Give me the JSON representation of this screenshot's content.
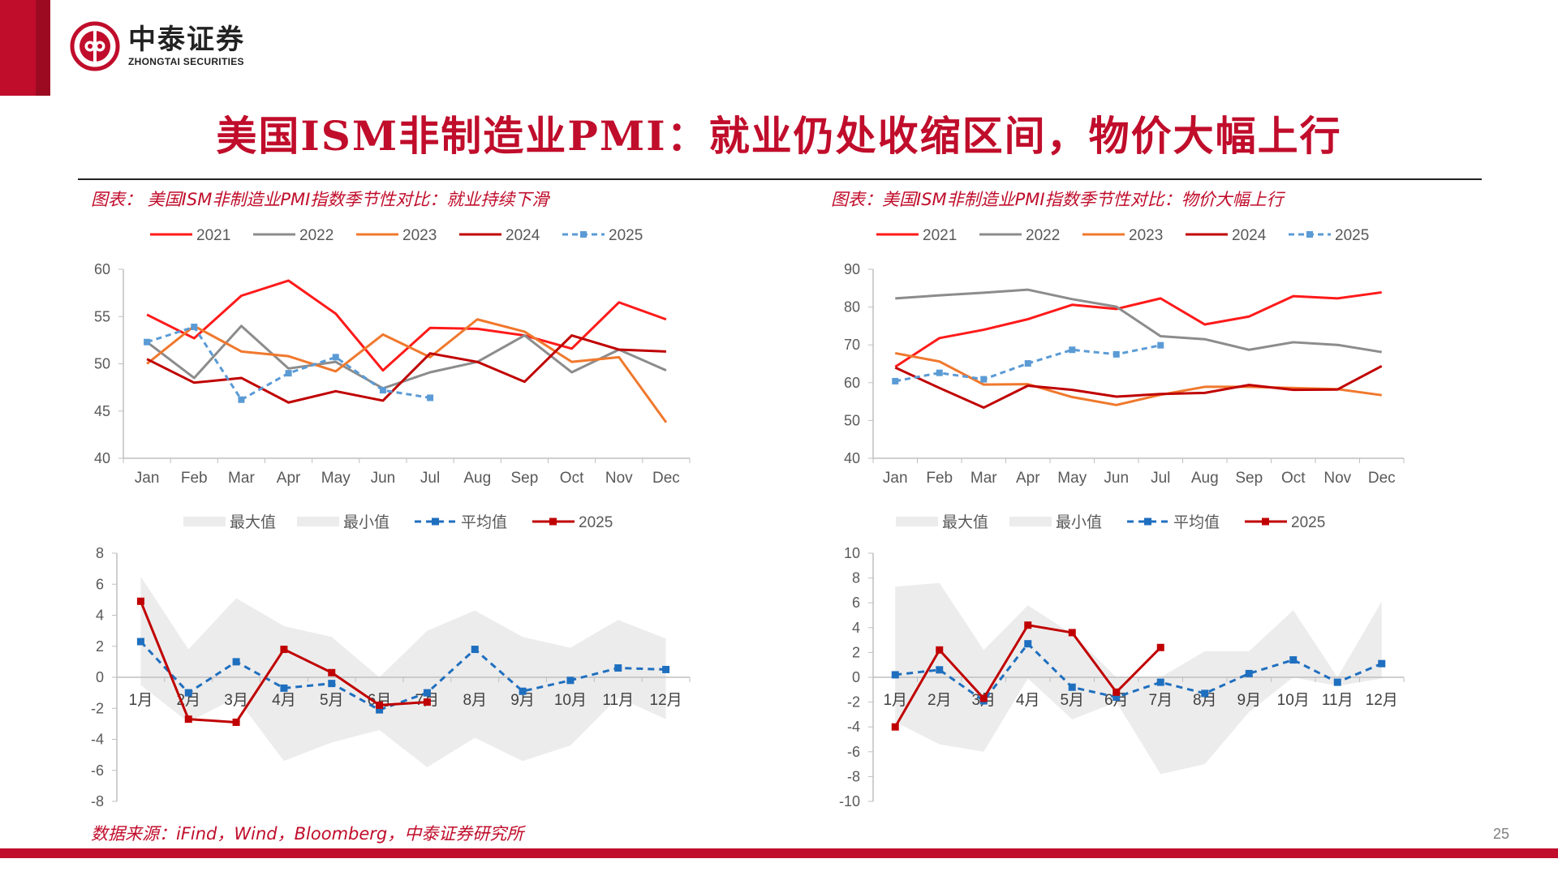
{
  "header": {
    "logo_cn": "中泰证券",
    "logo_en": "ZHONGTAI SECURITIES",
    "title": "美国ISM非制造业PMI：就业仍处收缩区间，物价大幅上行"
  },
  "colors": {
    "brand_red": "#c00d2b",
    "series_2021": "#ff1a1a",
    "series_2022": "#8c8c8c",
    "series_2023": "#f0782d",
    "series_2024": "#c00000",
    "series_2025": "#5b9bd5",
    "avg_blue": "#1f6fbf",
    "band_fill": "#ececec"
  },
  "captions": {
    "left": "图表：  美国ISM非制造业PMI指数季节性对比：就业持续下滑",
    "right": "图表：美国ISM非制造业PMI指数季节性对比：物价大幅上行"
  },
  "footer": {
    "source": "数据来源：iFind，Wind，Bloomberg，中泰证券研究所",
    "page": "25"
  },
  "chart_data": [
    {
      "id": "employment-seasonal",
      "type": "line",
      "x": [
        "Jan",
        "Feb",
        "Mar",
        "Apr",
        "May",
        "Jun",
        "Jul",
        "Aug",
        "Sep",
        "Oct",
        "Nov",
        "Dec"
      ],
      "ylim": [
        40,
        60
      ],
      "yticks": [
        40,
        45,
        50,
        55,
        60
      ],
      "legend_position": "top",
      "series": [
        {
          "name": "2021",
          "color": "#ff1a1a",
          "values": [
            55.2,
            52.7,
            57.2,
            58.8,
            55.3,
            49.3,
            53.8,
            53.7,
            53.0,
            51.6,
            56.5,
            54.7
          ]
        },
        {
          "name": "2022",
          "color": "#8c8c8c",
          "values": [
            52.3,
            48.5,
            54.0,
            49.5,
            50.2,
            47.4,
            49.1,
            50.2,
            53.0,
            49.1,
            51.5,
            49.3
          ]
        },
        {
          "name": "2023",
          "color": "#f0782d",
          "values": [
            50.0,
            54.0,
            51.3,
            50.8,
            49.2,
            53.1,
            50.7,
            54.7,
            53.4,
            50.2,
            50.7,
            43.8
          ]
        },
        {
          "name": "2024",
          "color": "#c00000",
          "values": [
            50.5,
            48.0,
            48.5,
            45.9,
            47.1,
            46.1,
            51.1,
            50.2,
            48.1,
            53.0,
            51.5,
            51.3
          ]
        },
        {
          "name": "2025",
          "color": "#5b9bd5",
          "dashed": true,
          "values": [
            52.3,
            53.9,
            46.2,
            49.0,
            50.7,
            47.2,
            46.4,
            null,
            null,
            null,
            null,
            null
          ]
        }
      ]
    },
    {
      "id": "prices-seasonal",
      "type": "line",
      "x": [
        "Jan",
        "Feb",
        "Mar",
        "Apr",
        "May",
        "Jun",
        "Jul",
        "Aug",
        "Sep",
        "Oct",
        "Nov",
        "Dec"
      ],
      "ylim": [
        40,
        90
      ],
      "yticks": [
        40,
        50,
        60,
        70,
        80,
        90
      ],
      "legend_position": "top",
      "series": [
        {
          "name": "2021",
          "color": "#ff1a1a",
          "values": [
            64.2,
            71.8,
            74.0,
            76.8,
            80.6,
            79.5,
            82.3,
            75.4,
            77.5,
            82.9,
            82.3,
            83.9
          ]
        },
        {
          "name": "2022",
          "color": "#8c8c8c",
          "values": [
            82.3,
            83.1,
            83.8,
            84.6,
            82.1,
            80.1,
            72.3,
            71.5,
            68.7,
            70.7,
            70.0,
            68.1
          ]
        },
        {
          "name": "2023",
          "color": "#f0782d",
          "values": [
            67.8,
            65.6,
            59.5,
            59.6,
            56.2,
            54.1,
            56.8,
            58.9,
            58.9,
            58.6,
            58.3,
            56.7
          ]
        },
        {
          "name": "2024",
          "color": "#c00000",
          "values": [
            64.0,
            58.6,
            53.4,
            59.2,
            58.1,
            56.3,
            57.0,
            57.3,
            59.4,
            58.1,
            58.2,
            64.4
          ]
        },
        {
          "name": "2025",
          "color": "#5b9bd5",
          "dashed": true,
          "values": [
            60.4,
            62.6,
            60.9,
            65.1,
            68.7,
            67.5,
            69.9,
            null,
            null,
            null,
            null,
            null
          ]
        }
      ]
    },
    {
      "id": "employment-mom-band",
      "type": "area",
      "x": [
        "1月",
        "2月",
        "3月",
        "4月",
        "5月",
        "6月",
        "7月",
        "8月",
        "9月",
        "10月",
        "11月",
        "12月"
      ],
      "ylim": [
        -8,
        8
      ],
      "yticks": [
        -8,
        -6,
        -4,
        -2,
        0,
        2,
        4,
        6,
        8
      ],
      "legend_position": "top",
      "series": [
        {
          "name": "最大值",
          "color": "#ececec",
          "values": [
            6.5,
            1.8,
            5.1,
            3.3,
            2.6,
            0.0,
            3.0,
            4.3,
            2.6,
            1.9,
            3.7,
            2.5
          ]
        },
        {
          "name": "最小值",
          "color": "#ececec",
          "values": [
            -0.5,
            -2.9,
            -1.3,
            -5.4,
            -4.2,
            -3.4,
            -5.8,
            -3.9,
            -5.4,
            -4.4,
            -1.3,
            -2.7
          ]
        },
        {
          "name": "平均值",
          "color": "#1f6fbf",
          "dashed": true,
          "values": [
            2.3,
            -1.0,
            1.0,
            -0.7,
            -0.4,
            -2.1,
            -1.0,
            1.8,
            -0.9,
            -0.2,
            0.6,
            0.5
          ]
        },
        {
          "name": "2025",
          "color": "#c00000",
          "values": [
            4.9,
            -2.7,
            -2.9,
            1.8,
            0.3,
            -1.8,
            -1.6,
            null,
            null,
            null,
            null,
            null
          ]
        }
      ]
    },
    {
      "id": "prices-mom-band",
      "type": "area",
      "x": [
        "1月",
        "2月",
        "3月",
        "4月",
        "5月",
        "6月",
        "7月",
        "8月",
        "9月",
        "10月",
        "11月",
        "12月"
      ],
      "ylim": [
        -10,
        10
      ],
      "yticks": [
        -10,
        -8,
        -6,
        -4,
        -2,
        0,
        2,
        4,
        6,
        8,
        10
      ],
      "legend_position": "top",
      "series": [
        {
          "name": "最大值",
          "color": "#ececec",
          "values": [
            7.3,
            7.6,
            2.2,
            5.8,
            3.5,
            0.0,
            0.0,
            2.1,
            2.1,
            5.4,
            0.0,
            6.1
          ]
        },
        {
          "name": "最小值",
          "color": "#ececec",
          "values": [
            -3.6,
            -5.4,
            -6.0,
            -0.1,
            -3.4,
            -2.0,
            -7.8,
            -7.0,
            -2.8,
            0.0,
            -0.7,
            -0.1
          ]
        },
        {
          "name": "平均值",
          "color": "#1f6fbf",
          "dashed": true,
          "values": [
            0.2,
            0.6,
            -1.9,
            2.7,
            -0.8,
            -1.6,
            -0.4,
            -1.3,
            0.3,
            1.4,
            -0.4,
            1.1
          ]
        },
        {
          "name": "2025",
          "color": "#c00000",
          "values": [
            -4.0,
            2.2,
            -1.7,
            4.2,
            3.6,
            -1.2,
            2.4,
            null,
            null,
            null,
            null,
            null
          ]
        }
      ]
    }
  ]
}
